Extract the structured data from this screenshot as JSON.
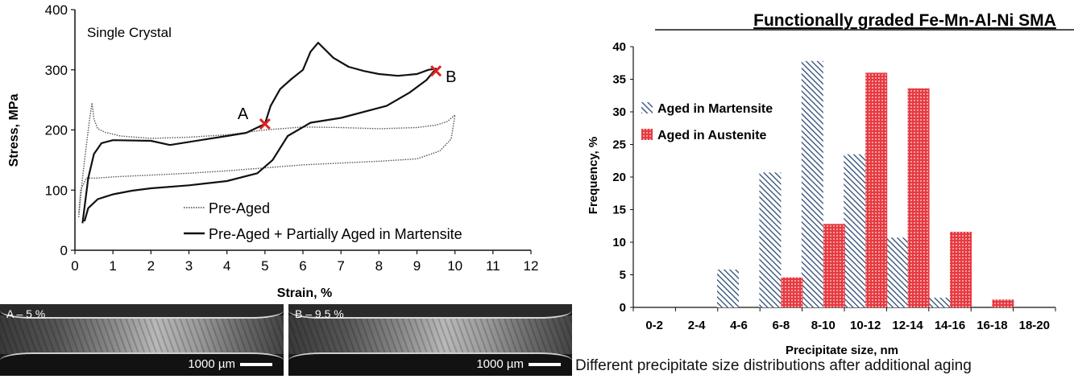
{
  "chart_data": [
    {
      "type": "line",
      "title": "",
      "annotation": "Single Crystal",
      "xlabel": "Strain, %",
      "ylabel": "Stress, MPa",
      "xlim": [
        0,
        12
      ],
      "ylim": [
        0,
        400
      ],
      "xticks": [
        "0",
        "1",
        "2",
        "3",
        "4",
        "5",
        "6",
        "7",
        "8",
        "9",
        "10",
        "11",
        "12"
      ],
      "yticks": [
        "0",
        "100",
        "200",
        "300",
        "400"
      ],
      "legend_position": "bottom-right",
      "series": [
        {
          "name": "Pre-Aged",
          "style": "dotted",
          "x": [
            0.1,
            0.2,
            0.3,
            0.4,
            0.45,
            0.5,
            0.6,
            0.8,
            1.2,
            2.0,
            3.0,
            4.0,
            5.0,
            6.0,
            7.0,
            8.0,
            9.0,
            9.5,
            9.8,
            10.0,
            9.9,
            9.6,
            9.0,
            8.0,
            7.0,
            6.0,
            5.0,
            4.0,
            3.0,
            2.0,
            1.0,
            0.6,
            0.3,
            0.15,
            0.1
          ],
          "y": [
            55,
            120,
            175,
            225,
            245,
            218,
            202,
            196,
            190,
            186,
            188,
            192,
            200,
            205,
            204,
            202,
            204,
            208,
            214,
            225,
            185,
            165,
            152,
            148,
            145,
            142,
            137,
            132,
            128,
            125,
            122,
            120,
            120,
            100,
            60
          ]
        },
        {
          "name": "Pre-Aged + Partially Aged in Martensite",
          "style": "solid",
          "x": [
            0.2,
            0.35,
            0.5,
            0.7,
            1.0,
            2.0,
            2.5,
            3.0,
            3.5,
            4.0,
            4.5,
            5.0,
            5.15,
            5.4,
            5.7,
            6.0,
            6.2,
            6.4,
            6.8,
            7.2,
            7.6,
            8.0,
            8.5,
            9.0,
            9.3,
            9.5,
            9.25,
            8.8,
            8.2,
            7.0,
            6.2,
            5.6,
            5.2,
            4.8,
            4.0,
            3.0,
            2.0,
            1.5,
            1.0,
            0.6,
            0.35,
            0.25
          ],
          "y": [
            45,
            120,
            160,
            178,
            183,
            182,
            175,
            180,
            185,
            190,
            195,
            210,
            240,
            268,
            285,
            300,
            330,
            345,
            320,
            305,
            298,
            293,
            290,
            293,
            300,
            302,
            283,
            262,
            240,
            220,
            212,
            190,
            150,
            128,
            115,
            108,
            103,
            99,
            93,
            85,
            70,
            48
          ]
        }
      ],
      "markers": [
        {
          "label": "A",
          "x": 5.0,
          "y": 210
        },
        {
          "label": "B",
          "x": 9.5,
          "y": 298
        }
      ]
    },
    {
      "type": "bar",
      "title": "Functionally graded Fe-Mn-Al-Ni SMA",
      "xlabel": "Precipitate size, nm",
      "ylabel": "Frequency, %",
      "ylim": [
        0,
        40
      ],
      "yticks": [
        "0",
        "5",
        "10",
        "15",
        "20",
        "25",
        "30",
        "35",
        "40"
      ],
      "categories": [
        "0-2",
        "2-4",
        "4-6",
        "6-8",
        "8-10",
        "10-12",
        "12-14",
        "14-16",
        "16-18",
        "18-20"
      ],
      "legend_position": "top-left",
      "series": [
        {
          "name": "Aged in Martensite",
          "color": "#1f3a60",
          "values": [
            0,
            0,
            5.8,
            20.7,
            37.8,
            23.5,
            10.7,
            1.5,
            0,
            0
          ]
        },
        {
          "name": "Aged in Austenite",
          "color": "#e8393f",
          "values": [
            0,
            0,
            0,
            4.6,
            12.8,
            36.0,
            33.6,
            11.6,
            1.2,
            0
          ]
        }
      ]
    }
  ],
  "micrographs": [
    {
      "label": "A – 5 %",
      "scale": "1000 µm"
    },
    {
      "label": "B – 9.5 %",
      "scale": "1000 µm"
    }
  ],
  "caption": "Different precipitate size distributions after additional aging"
}
